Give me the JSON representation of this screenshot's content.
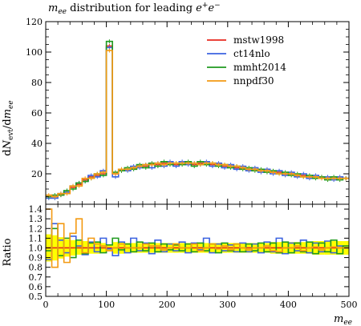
{
  "title": "m_ee distribution for leading e+e−",
  "chart_data": [
    {
      "type": "line",
      "panel": "main",
      "ylabel": "dN_evt/dm_ee",
      "ylim": [
        0,
        120
      ],
      "yticks": [
        20,
        40,
        60,
        80,
        100,
        120
      ],
      "grid": false,
      "legend_position": "top-right",
      "x": [
        0,
        10,
        20,
        30,
        40,
        50,
        60,
        70,
        80,
        90,
        100,
        110,
        120,
        130,
        140,
        150,
        160,
        170,
        180,
        190,
        200,
        210,
        220,
        230,
        240,
        250,
        260,
        270,
        280,
        290,
        300,
        310,
        320,
        330,
        340,
        350,
        360,
        370,
        380,
        390,
        400,
        410,
        420,
        430,
        440,
        450,
        460,
        470,
        480,
        490
      ],
      "series": [
        {
          "name": "mstw1998",
          "color": "#e8281e",
          "values": [
            5,
            5,
            6,
            8,
            11,
            13,
            16,
            18,
            19,
            20,
            104,
            20,
            22,
            23,
            24,
            25,
            25,
            26,
            26,
            27,
            27,
            26,
            27,
            27,
            26,
            27,
            27,
            26,
            26,
            25,
            25,
            24,
            24,
            23,
            23,
            22,
            22,
            21,
            21,
            20,
            20,
            19,
            19,
            18,
            18,
            18,
            17,
            17,
            17,
            17
          ]
        },
        {
          "name": "ct14nlo",
          "color": "#3b62e0",
          "values": [
            4,
            4,
            7,
            8,
            12,
            14,
            15,
            19,
            18,
            22,
            103,
            18,
            23,
            22,
            25,
            24,
            26,
            24,
            27,
            25,
            28,
            25,
            28,
            26,
            27,
            26,
            28,
            25,
            27,
            24,
            26,
            23,
            25,
            22,
            24,
            21,
            23,
            20,
            22,
            19,
            21,
            18,
            20,
            17,
            19,
            17,
            18,
            16,
            18,
            17
          ]
        },
        {
          "name": "mmht2014",
          "color": "#1f9a1f",
          "values": [
            5,
            6,
            6,
            9,
            10,
            14,
            15,
            17,
            20,
            19,
            107,
            21,
            22,
            24,
            23,
            26,
            24,
            27,
            25,
            28,
            26,
            27,
            26,
            28,
            25,
            28,
            26,
            27,
            25,
            26,
            24,
            25,
            23,
            24,
            22,
            23,
            21,
            22,
            20,
            21,
            19,
            20,
            18,
            19,
            17,
            18,
            16,
            18,
            16,
            17
          ]
        },
        {
          "name": "nnpdf30",
          "color": "#f39a12",
          "values": [
            6,
            5,
            7,
            7,
            12,
            12,
            17,
            17,
            20,
            21,
            101,
            20,
            23,
            23,
            24,
            25,
            26,
            26,
            27,
            26,
            27,
            27,
            27,
            27,
            27,
            26,
            27,
            27,
            26,
            26,
            25,
            25,
            24,
            23,
            23,
            22,
            22,
            21,
            20,
            20,
            20,
            19,
            18,
            18,
            18,
            17,
            17,
            17,
            17,
            17
          ]
        }
      ]
    },
    {
      "type": "line",
      "panel": "ratio",
      "ylabel": "Ratio",
      "xlabel": "m_ee",
      "xlim": [
        0,
        500
      ],
      "xticks": [
        0,
        100,
        200,
        300,
        400,
        500
      ],
      "ylim": [
        0.5,
        1.45
      ],
      "yticks": [
        0.5,
        0.6,
        0.7,
        0.8,
        0.9,
        1.0,
        1.1,
        1.2,
        1.3,
        1.4
      ],
      "band_color": "#ffff00",
      "band_halfwidth": [
        0.14,
        0.13,
        0.11,
        0.09,
        0.08,
        0.07,
        0.07,
        0.06,
        0.06,
        0.05,
        0.03,
        0.06,
        0.06,
        0.05,
        0.05,
        0.05,
        0.05,
        0.05,
        0.05,
        0.05,
        0.05,
        0.05,
        0.05,
        0.05,
        0.05,
        0.05,
        0.05,
        0.05,
        0.05,
        0.05,
        0.05,
        0.05,
        0.05,
        0.05,
        0.05,
        0.05,
        0.05,
        0.06,
        0.06,
        0.06,
        0.06,
        0.06,
        0.06,
        0.06,
        0.07,
        0.07,
        0.07,
        0.07,
        0.07,
        0.07
      ],
      "x": [
        0,
        10,
        20,
        30,
        40,
        50,
        60,
        70,
        80,
        90,
        100,
        110,
        120,
        130,
        140,
        150,
        160,
        170,
        180,
        190,
        200,
        210,
        220,
        230,
        240,
        250,
        260,
        270,
        280,
        290,
        300,
        310,
        320,
        330,
        340,
        350,
        360,
        370,
        380,
        390,
        400,
        410,
        420,
        430,
        440,
        450,
        460,
        470,
        480,
        490
      ],
      "series": [
        {
          "name": "mstw1998",
          "color": "#e8281e",
          "values": [
            1,
            1,
            1,
            1,
            1,
            1,
            1,
            1,
            1,
            1,
            1,
            1,
            1,
            1,
            1,
            1,
            1,
            1,
            1,
            1,
            1,
            1,
            1,
            1,
            1,
            1,
            1,
            1,
            1,
            1,
            1,
            1,
            1,
            1,
            1,
            1,
            1,
            1,
            1,
            1,
            1,
            1,
            1,
            1,
            1,
            1,
            1,
            1,
            1,
            1
          ]
        },
        {
          "name": "ct14nlo",
          "color": "#3b62e0",
          "values": [
            0.88,
            1.25,
            1.08,
            0.95,
            1.12,
            1.02,
            0.93,
            1.06,
            0.96,
            1.1,
            0.99,
            0.92,
            1.06,
            0.95,
            1.1,
            0.97,
            1.05,
            0.94,
            1.08,
            0.96,
            1.04,
            0.97,
            1.06,
            0.95,
            1.05,
            0.98,
            1.1,
            0.95,
            1.04,
            0.97,
            1.03,
            0.96,
            1.05,
            0.96,
            1.04,
            0.95,
            1.06,
            0.96,
            1.1,
            0.94,
            1.05,
            0.97,
            1.08,
            0.95,
            1.05,
            0.96,
            1.07,
            0.95,
            1.02,
            1.0
          ]
        },
        {
          "name": "mmht2014",
          "color": "#1f9a1f",
          "values": [
            0.97,
            1.2,
            0.92,
            1.1,
            0.9,
            1.08,
            0.94,
            1.05,
            1.06,
            0.95,
            1.03,
            1.1,
            0.98,
            1.04,
            0.96,
            1.06,
            0.97,
            1.05,
            0.96,
            1.04,
            0.98,
            1.03,
            0.97,
            1.04,
            0.96,
            1.05,
            0.97,
            1.04,
            0.95,
            1.05,
            0.97,
            1.04,
            0.96,
            1.04,
            0.97,
            1.05,
            0.96,
            1.05,
            0.95,
            1.06,
            0.95,
            1.05,
            0.96,
            1.06,
            0.94,
            1.05,
            0.96,
            1.08,
            0.94,
            1.02
          ]
        },
        {
          "name": "nnpdf30",
          "color": "#f39a12",
          "values": [
            1.4,
            0.8,
            1.25,
            0.85,
            1.15,
            1.3,
            0.95,
            1.1,
            1.04,
            1.02,
            0.97,
            1.0,
            1.04,
            1.0,
            1.0,
            1.0,
            1.04,
            1.02,
            1.02,
            0.98,
            1.0,
            1.04,
            1.0,
            1.0,
            1.04,
            0.97,
            1.0,
            1.04,
            0.99,
            1.02,
            0.98,
            1.04,
            1.0,
            0.98,
            1.0,
            1.0,
            1.02,
            0.97,
            0.96,
            1.0,
            1.0,
            1.02,
            0.97,
            1.0,
            1.01,
            0.98,
            1.0,
            1.01,
            1.0,
            1.0
          ]
        }
      ]
    }
  ]
}
